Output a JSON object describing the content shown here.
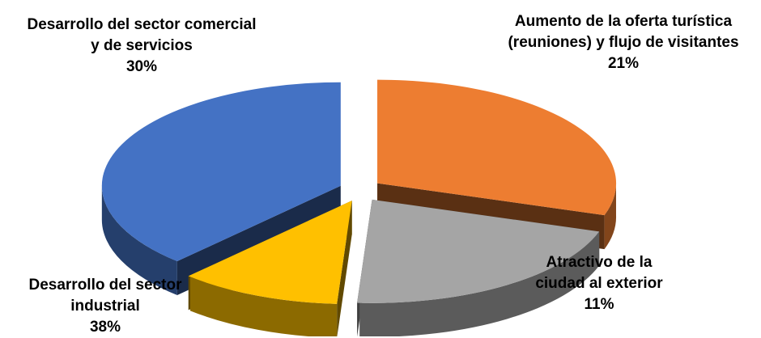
{
  "chart_data": {
    "type": "pie",
    "style": "3d-exploded",
    "slices": [
      {
        "label_lines": [
          "Desarrollo del sector comercial",
          "y de servicios"
        ],
        "value": 30,
        "value_label": "30%",
        "color": "#ED7D31"
      },
      {
        "label_lines": [
          "Aumento de la oferta turística",
          "(reuniones) y flujo de visitantes"
        ],
        "value": 21,
        "value_label": "21%",
        "color": "#A5A5A5"
      },
      {
        "label_lines": [
          "Atractivo de la",
          "ciudad al exterior"
        ],
        "value": 11,
        "value_label": "11%",
        "color": "#FFC000"
      },
      {
        "label_lines": [
          "Desarrollo del sector",
          "industrial"
        ],
        "value": 38,
        "value_label": "38%",
        "color": "#4472C4"
      }
    ]
  }
}
